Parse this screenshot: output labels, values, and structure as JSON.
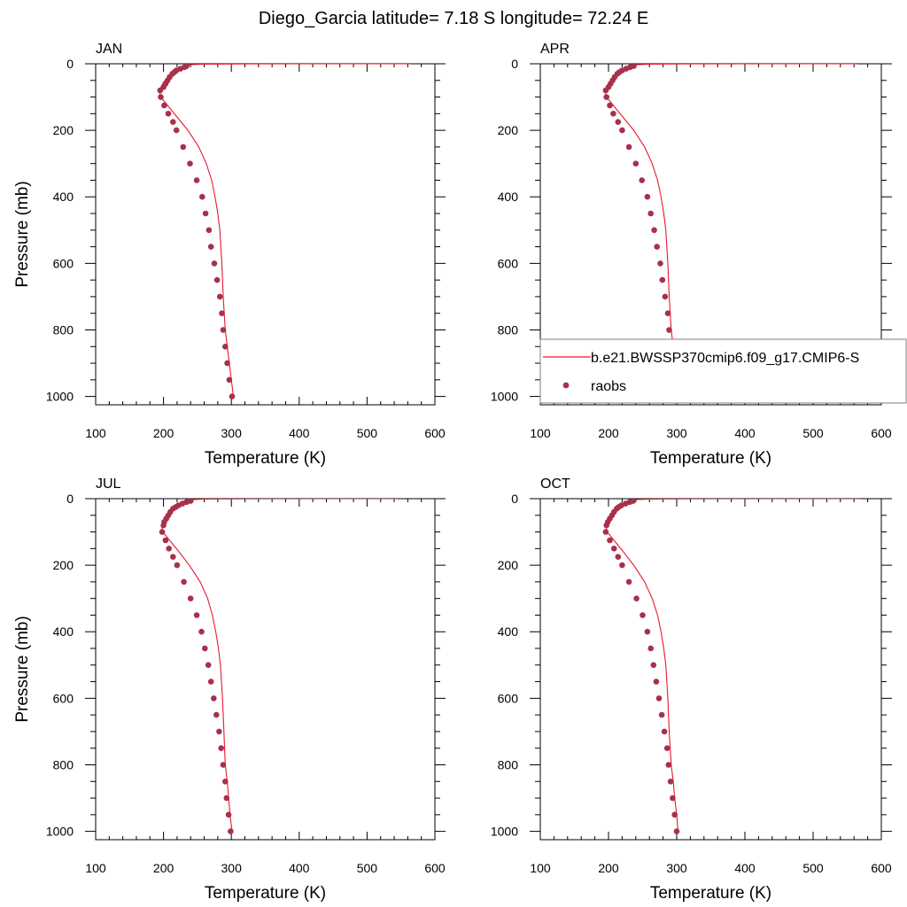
{
  "figure": {
    "title": "Diego_Garcia  latitude= 7.18 S longitude= 72.24 E"
  },
  "colors": {
    "model": "#e8192c",
    "obs": "#a8304a",
    "frame": "#000000"
  },
  "legend": {
    "placement": "inside APR panel, lower part",
    "entries": [
      {
        "label": "b.e21.BWSSP370cmip6.f09_g17.CMIP6-S",
        "marker": "line"
      },
      {
        "label": "raobs",
        "marker": "dot"
      }
    ]
  },
  "chart_data": [
    {
      "type": "line",
      "panel_label": "JAN",
      "xlabel": "Temperature (K)",
      "ylabel": "Pressure (mb)",
      "xlim": [
        100,
        600
      ],
      "ylim": [
        1025,
        0
      ],
      "xticks": [
        100,
        200,
        300,
        400,
        500,
        600
      ],
      "yticks": [
        0,
        200,
        400,
        600,
        800,
        1000
      ],
      "series": [
        {
          "name": "b.e21.BWSSP370cmip6.f09_g17.CMIP6-S",
          "kind": "line",
          "points": [
            [
              565,
              0.05
            ],
            [
              450,
              0.1
            ],
            [
              330,
              0.3
            ],
            [
              260,
              1
            ],
            [
              235,
              3
            ],
            [
              228,
              7
            ],
            [
              222,
              15
            ],
            [
              212,
              30
            ],
            [
              200,
              55
            ],
            [
              194,
              80
            ],
            [
              196,
              100
            ],
            [
              206,
              125
            ],
            [
              220,
              160
            ],
            [
              236,
              200
            ],
            [
              252,
              250
            ],
            [
              263,
              300
            ],
            [
              271,
              350
            ],
            [
              276,
              400
            ],
            [
              280,
              450
            ],
            [
              283,
              500
            ],
            [
              286,
              600
            ],
            [
              288,
              700
            ],
            [
              291,
              800
            ],
            [
              294,
              850
            ],
            [
              297,
              900
            ],
            [
              300,
              950
            ],
            [
              303,
              1000
            ]
          ]
        },
        {
          "name": "raobs",
          "kind": "scatter",
          "points": [
            [
              234,
              7
            ],
            [
              231,
              10
            ],
            [
              225,
              15
            ],
            [
              219,
              20
            ],
            [
              216,
              25
            ],
            [
              213,
              30
            ],
            [
              209,
              40
            ],
            [
              206,
              50
            ],
            [
              203,
              60
            ],
            [
              200,
              70
            ],
            [
              195,
              80
            ],
            [
              196,
              100
            ],
            [
              201,
              125
            ],
            [
              207,
              150
            ],
            [
              214,
              175
            ],
            [
              219,
              200
            ],
            [
              229,
              250
            ],
            [
              239,
              300
            ],
            [
              249,
              350
            ],
            [
              257,
              400
            ],
            [
              262,
              450
            ],
            [
              267,
              500
            ],
            [
              270,
              550
            ],
            [
              275,
              600
            ],
            [
              279,
              650
            ],
            [
              283,
              700
            ],
            [
              286,
              750
            ],
            [
              288,
              800
            ],
            [
              291,
              850
            ],
            [
              294,
              900
            ],
            [
              297,
              950
            ],
            [
              301,
              1000
            ]
          ]
        }
      ]
    },
    {
      "type": "line",
      "panel_label": "APR",
      "xlabel": "Temperature (K)",
      "ylabel": "",
      "xlim": [
        100,
        600
      ],
      "ylim": [
        1025,
        0
      ],
      "xticks": [
        100,
        200,
        300,
        400,
        500,
        600
      ],
      "yticks": [
        0,
        200,
        400,
        600,
        800,
        1000
      ],
      "series": [
        {
          "name": "b.e21.BWSSP370cmip6.f09_g17.CMIP6-S",
          "kind": "line",
          "points": [
            [
              565,
              0.05
            ],
            [
              450,
              0.1
            ],
            [
              330,
              0.3
            ],
            [
              262,
              1
            ],
            [
              238,
              3
            ],
            [
              228,
              7
            ],
            [
              222,
              15
            ],
            [
              212,
              30
            ],
            [
              201,
              55
            ],
            [
              195,
              80
            ],
            [
              197,
              100
            ],
            [
              207,
              125
            ],
            [
              221,
              160
            ],
            [
              237,
              200
            ],
            [
              253,
              250
            ],
            [
              264,
              300
            ],
            [
              272,
              350
            ],
            [
              277,
              400
            ],
            [
              281,
              450
            ],
            [
              284,
              500
            ],
            [
              287,
              600
            ],
            [
              289,
              700
            ],
            [
              292,
              800
            ],
            [
              295,
              850
            ],
            [
              298,
              900
            ],
            [
              300,
              950
            ],
            [
              303,
              1000
            ]
          ]
        },
        {
          "name": "raobs",
          "kind": "scatter",
          "points": [
            [
              237,
              7
            ],
            [
              232,
              10
            ],
            [
              226,
              15
            ],
            [
              220,
              20
            ],
            [
              216,
              25
            ],
            [
              213,
              30
            ],
            [
              209,
              40
            ],
            [
              206,
              50
            ],
            [
              203,
              60
            ],
            [
              200,
              70
            ],
            [
              196,
              80
            ],
            [
              197,
              100
            ],
            [
              202,
              125
            ],
            [
              207,
              150
            ],
            [
              214,
              175
            ],
            [
              220,
              200
            ],
            [
              230,
              250
            ],
            [
              240,
              300
            ],
            [
              249,
              350
            ],
            [
              257,
              400
            ],
            [
              262,
              450
            ],
            [
              267,
              500
            ],
            [
              271,
              550
            ],
            [
              276,
              600
            ],
            [
              279,
              650
            ],
            [
              283,
              700
            ],
            [
              287,
              750
            ],
            [
              289,
              800
            ],
            [
              292,
              850
            ],
            [
              295,
              900
            ],
            [
              298,
              950
            ],
            [
              302,
              1000
            ]
          ]
        }
      ]
    },
    {
      "type": "line",
      "panel_label": "JUL",
      "xlabel": "Temperature (K)",
      "ylabel": "Pressure (mb)",
      "xlim": [
        100,
        600
      ],
      "ylim": [
        1025,
        0
      ],
      "xticks": [
        100,
        200,
        300,
        400,
        500,
        600
      ],
      "yticks": [
        0,
        200,
        400,
        600,
        800,
        1000
      ],
      "series": [
        {
          "name": "b.e21.BWSSP370cmip6.f09_g17.CMIP6-S",
          "kind": "line",
          "points": [
            [
              545,
              0.05
            ],
            [
              440,
              0.1
            ],
            [
              325,
              0.3
            ],
            [
              262,
              1
            ],
            [
              240,
              3
            ],
            [
              230,
              7
            ],
            [
              222,
              15
            ],
            [
              212,
              30
            ],
            [
              202,
              55
            ],
            [
              197,
              80
            ],
            [
              199,
              100
            ],
            [
              209,
              125
            ],
            [
              223,
              160
            ],
            [
              238,
              200
            ],
            [
              254,
              250
            ],
            [
              265,
              300
            ],
            [
              272,
              350
            ],
            [
              277,
              400
            ],
            [
              281,
              450
            ],
            [
              284,
              500
            ],
            [
              287,
              600
            ],
            [
              289,
              700
            ],
            [
              291,
              800
            ],
            [
              294,
              850
            ],
            [
              296,
              900
            ],
            [
              298,
              950
            ],
            [
              301,
              1000
            ]
          ]
        },
        {
          "name": "raobs",
          "kind": "scatter",
          "points": [
            [
              240,
              7
            ],
            [
              234,
              10
            ],
            [
              228,
              15
            ],
            [
              222,
              20
            ],
            [
              218,
              25
            ],
            [
              214,
              30
            ],
            [
              210,
              40
            ],
            [
              207,
              50
            ],
            [
              204,
              60
            ],
            [
              201,
              70
            ],
            [
              200,
              80
            ],
            [
              198,
              100
            ],
            [
              203,
              125
            ],
            [
              208,
              150
            ],
            [
              214,
              175
            ],
            [
              220,
              200
            ],
            [
              230,
              250
            ],
            [
              240,
              300
            ],
            [
              249,
              350
            ],
            [
              256,
              400
            ],
            [
              261,
              450
            ],
            [
              266,
              500
            ],
            [
              270,
              550
            ],
            [
              274,
              600
            ],
            [
              278,
              650
            ],
            [
              282,
              700
            ],
            [
              285,
              750
            ],
            [
              288,
              800
            ],
            [
              291,
              850
            ],
            [
              293,
              900
            ],
            [
              296,
              950
            ],
            [
              299,
              1000
            ]
          ]
        }
      ]
    },
    {
      "type": "line",
      "panel_label": "OCT",
      "xlabel": "Temperature (K)",
      "ylabel": "",
      "xlim": [
        100,
        600
      ],
      "ylim": [
        1025,
        0
      ],
      "xticks": [
        100,
        200,
        300,
        400,
        500,
        600
      ],
      "yticks": [
        0,
        200,
        400,
        600,
        800,
        1000
      ],
      "series": [
        {
          "name": "b.e21.BWSSP370cmip6.f09_g17.CMIP6-S",
          "kind": "line",
          "points": [
            [
              570,
              0.05
            ],
            [
              455,
              0.1
            ],
            [
              332,
              0.3
            ],
            [
              262,
              1
            ],
            [
              238,
              3
            ],
            [
              229,
              7
            ],
            [
              222,
              15
            ],
            [
              212,
              30
            ],
            [
              202,
              55
            ],
            [
              196,
              80
            ],
            [
              198,
              100
            ],
            [
              208,
              125
            ],
            [
              222,
              160
            ],
            [
              237,
              200
            ],
            [
              253,
              250
            ],
            [
              264,
              300
            ],
            [
              272,
              350
            ],
            [
              277,
              400
            ],
            [
              281,
              450
            ],
            [
              284,
              500
            ],
            [
              287,
              600
            ],
            [
              289,
              700
            ],
            [
              292,
              800
            ],
            [
              295,
              850
            ],
            [
              297,
              900
            ],
            [
              300,
              950
            ],
            [
              302,
              1000
            ]
          ]
        },
        {
          "name": "raobs",
          "kind": "scatter",
          "points": [
            [
              236,
              7
            ],
            [
              231,
              10
            ],
            [
              225,
              15
            ],
            [
              219,
              20
            ],
            [
              215,
              25
            ],
            [
              212,
              30
            ],
            [
              208,
              40
            ],
            [
              205,
              50
            ],
            [
              202,
              60
            ],
            [
              199,
              70
            ],
            [
              197,
              80
            ],
            [
              196,
              100
            ],
            [
              202,
              125
            ],
            [
              208,
              150
            ],
            [
              214,
              175
            ],
            [
              220,
              200
            ],
            [
              230,
              250
            ],
            [
              241,
              300
            ],
            [
              250,
              350
            ],
            [
              257,
              400
            ],
            [
              262,
              450
            ],
            [
              266,
              500
            ],
            [
              270,
              550
            ],
            [
              274,
              600
            ],
            [
              278,
              650
            ],
            [
              282,
              700
            ],
            [
              286,
              750
            ],
            [
              288,
              800
            ],
            [
              291,
              850
            ],
            [
              294,
              900
            ],
            [
              297,
              950
            ],
            [
              300,
              1000
            ]
          ]
        }
      ]
    }
  ]
}
